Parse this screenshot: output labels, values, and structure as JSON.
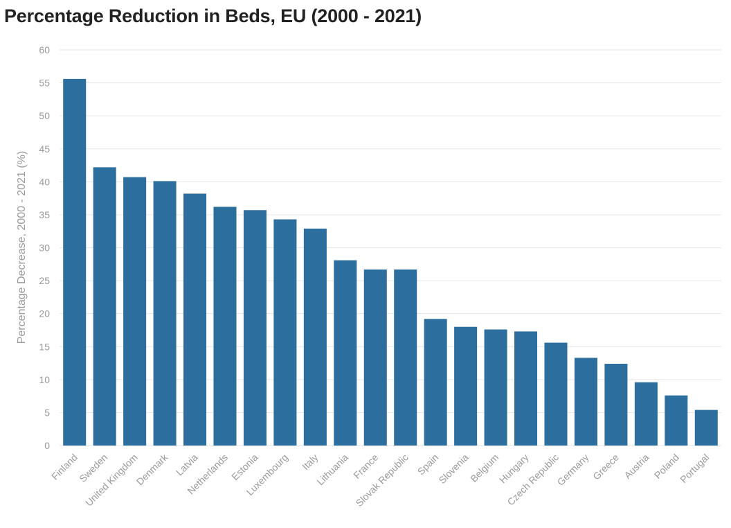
{
  "chart_data": {
    "type": "bar",
    "title": "Percentage Reduction in Beds, EU (2000 - 2021)",
    "ylabel": "Percentage Decrease, 2000 - 2021 (%)",
    "xlabel": "",
    "ylim": [
      0,
      60
    ],
    "yticks": [
      0,
      5,
      10,
      15,
      20,
      25,
      30,
      35,
      40,
      45,
      50,
      55,
      60
    ],
    "grid": true,
    "bar_color": "#2c6f9e",
    "categories": [
      "Finland",
      "Sweden",
      "United Kingdom",
      "Denmark",
      "Latvia",
      "Netherlands",
      "Estonia",
      "Luxembourg",
      "Italy",
      "Lithuania",
      "France",
      "Slovak Republic",
      "Spain",
      "Slovenia",
      "Belgium",
      "Hungary",
      "Czech Republic",
      "Germany",
      "Greece",
      "Austria",
      "Poland",
      "Portugal"
    ],
    "values": [
      55.6,
      42.2,
      40.7,
      40.1,
      38.2,
      36.2,
      35.7,
      34.3,
      32.9,
      28.1,
      26.7,
      26.7,
      19.2,
      18.0,
      17.6,
      17.3,
      15.6,
      13.3,
      12.4,
      9.6,
      7.6,
      5.4
    ]
  }
}
